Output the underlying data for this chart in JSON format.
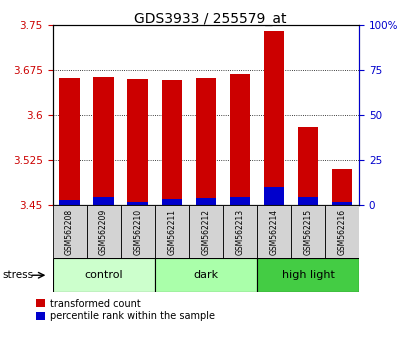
{
  "title": "GDS3933 / 255579_at",
  "samples": [
    "GSM562208",
    "GSM562209",
    "GSM562210",
    "GSM562211",
    "GSM562212",
    "GSM562213",
    "GSM562214",
    "GSM562215",
    "GSM562216"
  ],
  "transformed_count": [
    3.662,
    3.663,
    3.66,
    3.658,
    3.662,
    3.668,
    3.74,
    3.58,
    3.51
  ],
  "percentile_rank": [
    3.0,
    4.5,
    2.0,
    3.5,
    4.0,
    4.5,
    10.0,
    4.5,
    2.0
  ],
  "ymin": 3.45,
  "ymax": 3.75,
  "yticks": [
    3.45,
    3.525,
    3.6,
    3.675,
    3.75
  ],
  "right_ytick_pct": [
    0,
    25,
    50,
    75,
    100
  ],
  "bar_color_red": "#cc0000",
  "bar_color_blue": "#0000cc",
  "groups": [
    {
      "label": "control",
      "start": 0,
      "end": 3,
      "color": "#ccffcc"
    },
    {
      "label": "dark",
      "start": 3,
      "end": 6,
      "color": "#aaffaa"
    },
    {
      "label": "high light",
      "start": 6,
      "end": 9,
      "color": "#44cc44"
    }
  ],
  "stress_label": "stress",
  "legend_red": "transformed count",
  "legend_blue": "percentile rank within the sample"
}
